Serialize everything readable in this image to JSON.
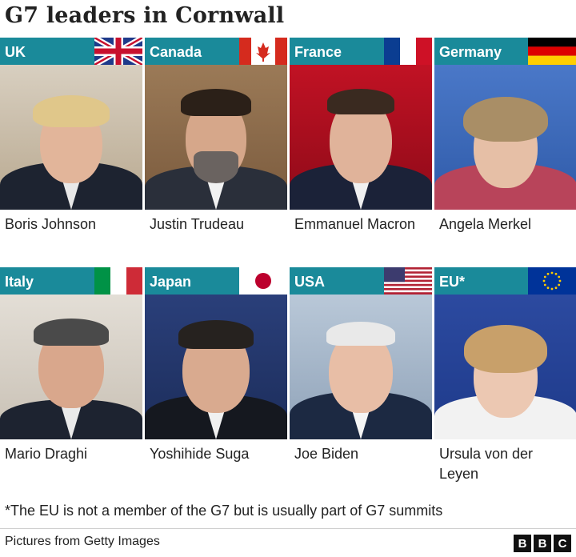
{
  "title": "G7 leaders in Cornwall",
  "leaders": [
    {
      "country": "UK",
      "name": "Boris Johnson"
    },
    {
      "country": "Canada",
      "name": "Justin Trudeau"
    },
    {
      "country": "France",
      "name": "Emmanuel Macron"
    },
    {
      "country": "Germany",
      "name": "Angela Merkel"
    },
    {
      "country": "Italy",
      "name": "Mario Draghi"
    },
    {
      "country": "Japan",
      "name": "Yoshihide Suga"
    },
    {
      "country": "USA",
      "name": "Joe Biden"
    },
    {
      "country": "EU*",
      "name": "Ursula von der Leyen"
    }
  ],
  "footnote": "*The EU is not a member of the G7 but is usually part of G7 summits",
  "credit": "Pictures from Getty Images",
  "logo": [
    "B",
    "B",
    "C"
  ],
  "colors": {
    "header_bar": "#1a8a9a"
  }
}
